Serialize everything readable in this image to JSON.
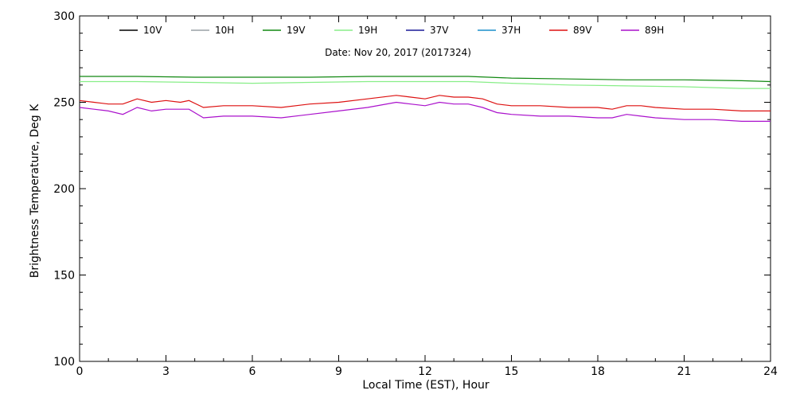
{
  "chart_data": {
    "type": "line",
    "xlabel": "Local Time (EST), Hour",
    "ylabel": "Brightness Temperature, Deg K",
    "annotation": "Date: Nov 20, 2017 (2017324)",
    "xlim": [
      0,
      24
    ],
    "ylim": [
      100,
      300
    ],
    "x_ticks": [
      0,
      3,
      6,
      9,
      12,
      15,
      18,
      21,
      24
    ],
    "y_ticks": [
      100,
      150,
      200,
      250,
      300
    ],
    "grid": false,
    "legend_position": "top",
    "series": [
      {
        "name": "10V",
        "color": "#000000",
        "x": [],
        "y": []
      },
      {
        "name": "10H",
        "color": "#9aa0a6",
        "x": [],
        "y": []
      },
      {
        "name": "19V",
        "color": "#118811",
        "x": [
          0,
          2,
          4,
          6,
          8,
          10,
          12,
          13.5,
          15,
          17,
          19,
          21,
          23,
          24
        ],
        "y": [
          265,
          265,
          264.5,
          264.5,
          264.5,
          265,
          265,
          265,
          264,
          263.5,
          263,
          263,
          262.5,
          262
        ]
      },
      {
        "name": "19H",
        "color": "#88ee88",
        "x": [
          0,
          2,
          4,
          6,
          8,
          10,
          12,
          13.5,
          15,
          17,
          19,
          21,
          23,
          24
        ],
        "y": [
          262,
          262,
          261.5,
          261,
          261.5,
          262,
          262,
          262,
          261,
          260,
          259.5,
          259,
          258,
          258
        ]
      },
      {
        "name": "37V",
        "color": "#1a1a99",
        "x": [],
        "y": []
      },
      {
        "name": "37H",
        "color": "#1a8fcc",
        "x": [],
        "y": []
      },
      {
        "name": "89V",
        "color": "#dd1111",
        "x": [
          0,
          0.5,
          1,
          1.5,
          2,
          2.5,
          3,
          3.5,
          3.8,
          4.3,
          5,
          6,
          7,
          8,
          9,
          10,
          11,
          11.5,
          12,
          12.5,
          13,
          13.5,
          14,
          14.5,
          15,
          16,
          17,
          18,
          18.5,
          19,
          19.5,
          20,
          21,
          22,
          23,
          24
        ],
        "y": [
          251,
          250,
          249,
          249,
          252,
          250,
          251,
          250,
          251,
          247,
          248,
          248,
          247,
          249,
          250,
          252,
          254,
          253,
          252,
          254,
          253,
          253,
          252,
          249,
          248,
          248,
          247,
          247,
          246,
          248,
          248,
          247,
          246,
          246,
          245,
          245
        ]
      },
      {
        "name": "89H",
        "color": "#aa11cc",
        "x": [
          0,
          0.5,
          1,
          1.5,
          2,
          2.5,
          3,
          3.5,
          3.8,
          4.3,
          5,
          6,
          7,
          8,
          9,
          10,
          11,
          11.5,
          12,
          12.5,
          13,
          13.5,
          14,
          14.5,
          15,
          16,
          17,
          18,
          18.5,
          19,
          19.5,
          20,
          21,
          22,
          23,
          24
        ],
        "y": [
          247,
          246,
          245,
          243,
          247,
          245,
          246,
          246,
          246,
          241,
          242,
          242,
          241,
          243,
          245,
          247,
          250,
          249,
          248,
          250,
          249,
          249,
          247,
          244,
          243,
          242,
          242,
          241,
          241,
          243,
          242,
          241,
          240,
          240,
          239,
          239
        ]
      }
    ]
  }
}
